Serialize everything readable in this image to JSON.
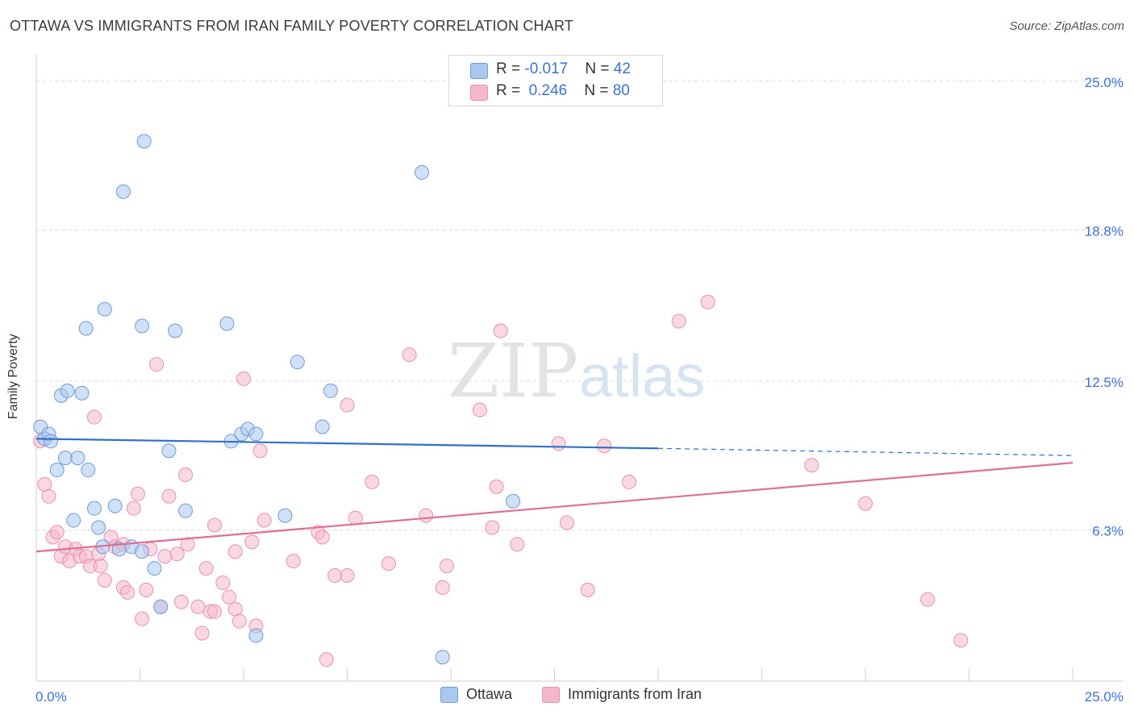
{
  "title": "OTTAWA VS IMMIGRANTS FROM IRAN FAMILY POVERTY CORRELATION CHART",
  "source": "Source: ZipAtlas.com",
  "watermark": {
    "part1": "ZIP",
    "part2": "atlas"
  },
  "legend": {
    "rows": [
      {
        "r_label": "R = ",
        "r_value": "-0.017",
        "n_label": "N = ",
        "n_value": "42"
      },
      {
        "r_label": "R = ",
        "r_value": "0.246",
        "n_label": "N = ",
        "n_value": "80"
      }
    ]
  },
  "colors": {
    "blue_fill": "#a9c7ef",
    "blue_stroke": "#6f9bd8",
    "blue_line": "#2e6fd0",
    "pink_fill": "#f5b8cb",
    "pink_stroke": "#e891ad",
    "pink_line": "#e06d98",
    "axis_label": "#3a72d8"
  },
  "chart_data": {
    "type": "scatter",
    "title": "OTTAWA VS IMMIGRANTS FROM IRAN FAMILY POVERTY CORRELATION CHART",
    "xlabel": "",
    "ylabel": "Family Poverty",
    "xlim": [
      0,
      25
    ],
    "ylim": [
      0,
      25.9
    ],
    "x_tick_labels": [
      "0.0%",
      "25.0%"
    ],
    "y_ticks": [
      6.3,
      12.5,
      18.8,
      25.0
    ],
    "y_tick_labels": [
      "6.3%",
      "12.5%",
      "18.8%",
      "25.0%"
    ],
    "grid": true,
    "series": [
      {
        "name": "Ottawa",
        "r": -0.017,
        "n": 42,
        "trend": {
          "x0": 0,
          "y0": 10.1,
          "x1": 15,
          "y1": 9.7,
          "dashed_to_x": 25,
          "dashed_to_y": 9.4
        },
        "points": [
          [
            0.1,
            10.6
          ],
          [
            0.2,
            10.1
          ],
          [
            0.3,
            10.3
          ],
          [
            0.35,
            10.0
          ],
          [
            0.5,
            8.8
          ],
          [
            0.6,
            11.9
          ],
          [
            0.7,
            9.3
          ],
          [
            0.75,
            12.1
          ],
          [
            0.9,
            6.7
          ],
          [
            1.0,
            9.3
          ],
          [
            1.1,
            12.0
          ],
          [
            1.2,
            14.7
          ],
          [
            1.25,
            8.8
          ],
          [
            1.4,
            7.2
          ],
          [
            1.5,
            6.4
          ],
          [
            1.6,
            5.6
          ],
          [
            1.65,
            15.5
          ],
          [
            1.9,
            7.3
          ],
          [
            2.0,
            5.5
          ],
          [
            2.1,
            20.4
          ],
          [
            2.3,
            5.6
          ],
          [
            2.55,
            14.8
          ],
          [
            2.55,
            5.4
          ],
          [
            2.6,
            22.5
          ],
          [
            2.85,
            4.7
          ],
          [
            3.0,
            3.1
          ],
          [
            3.2,
            9.6
          ],
          [
            3.35,
            14.6
          ],
          [
            3.6,
            7.1
          ],
          [
            4.6,
            14.9
          ],
          [
            4.7,
            10.0
          ],
          [
            4.95,
            10.3
          ],
          [
            5.1,
            10.5
          ],
          [
            5.3,
            10.3
          ],
          [
            5.3,
            1.9
          ],
          [
            6.0,
            6.9
          ],
          [
            6.3,
            13.3
          ],
          [
            6.9,
            10.6
          ],
          [
            7.1,
            12.1
          ],
          [
            9.3,
            21.2
          ],
          [
            9.8,
            1.0
          ],
          [
            11.5,
            7.5
          ]
        ]
      },
      {
        "name": "Immigrants from Iran",
        "r": 0.246,
        "n": 80,
        "trend": {
          "x0": 0,
          "y0": 5.4,
          "x1": 25,
          "y1": 9.1
        },
        "points": [
          [
            0.1,
            10.0
          ],
          [
            0.2,
            8.2
          ],
          [
            0.3,
            7.7
          ],
          [
            0.4,
            6.0
          ],
          [
            0.5,
            6.2
          ],
          [
            0.6,
            5.2
          ],
          [
            0.7,
            5.6
          ],
          [
            0.8,
            5.0
          ],
          [
            0.95,
            5.5
          ],
          [
            1.05,
            5.2
          ],
          [
            1.2,
            5.2
          ],
          [
            1.3,
            4.8
          ],
          [
            1.4,
            11.0
          ],
          [
            1.5,
            5.3
          ],
          [
            1.55,
            4.8
          ],
          [
            1.65,
            4.2
          ],
          [
            1.8,
            6.0
          ],
          [
            1.9,
            5.6
          ],
          [
            2.1,
            5.7
          ],
          [
            2.1,
            3.9
          ],
          [
            2.2,
            3.7
          ],
          [
            2.35,
            7.2
          ],
          [
            2.45,
            7.8
          ],
          [
            2.55,
            2.6
          ],
          [
            2.65,
            3.8
          ],
          [
            2.75,
            5.5
          ],
          [
            2.9,
            13.2
          ],
          [
            3.0,
            3.1
          ],
          [
            3.1,
            5.2
          ],
          [
            3.2,
            7.7
          ],
          [
            3.4,
            5.3
          ],
          [
            3.5,
            3.3
          ],
          [
            3.6,
            8.6
          ],
          [
            3.65,
            5.7
          ],
          [
            3.9,
            3.1
          ],
          [
            4.0,
            2.0
          ],
          [
            4.1,
            4.7
          ],
          [
            4.2,
            2.9
          ],
          [
            4.3,
            2.9
          ],
          [
            4.3,
            6.5
          ],
          [
            4.5,
            4.1
          ],
          [
            4.65,
            3.5
          ],
          [
            4.8,
            3.0
          ],
          [
            4.8,
            5.4
          ],
          [
            4.9,
            2.5
          ],
          [
            5.0,
            12.6
          ],
          [
            5.2,
            5.8
          ],
          [
            5.3,
            2.3
          ],
          [
            5.4,
            9.6
          ],
          [
            5.5,
            6.7
          ],
          [
            6.2,
            5.0
          ],
          [
            6.8,
            6.2
          ],
          [
            6.9,
            6.0
          ],
          [
            7.0,
            0.9
          ],
          [
            7.2,
            4.4
          ],
          [
            7.5,
            4.4
          ],
          [
            7.5,
            11.5
          ],
          [
            7.7,
            6.8
          ],
          [
            8.1,
            8.3
          ],
          [
            8.5,
            4.9
          ],
          [
            9.0,
            13.6
          ],
          [
            9.4,
            6.9
          ],
          [
            9.8,
            3.9
          ],
          [
            9.9,
            4.8
          ],
          [
            10.7,
            11.3
          ],
          [
            11.0,
            6.4
          ],
          [
            11.1,
            8.1
          ],
          [
            11.2,
            14.6
          ],
          [
            11.6,
            5.7
          ],
          [
            12.6,
            9.9
          ],
          [
            12.8,
            6.6
          ],
          [
            13.3,
            3.8
          ],
          [
            13.7,
            9.8
          ],
          [
            14.3,
            8.3
          ],
          [
            15.5,
            15.0
          ],
          [
            16.2,
            15.8
          ],
          [
            18.7,
            9.0
          ],
          [
            20.0,
            7.4
          ],
          [
            21.5,
            3.4
          ],
          [
            22.3,
            1.7
          ]
        ]
      }
    ]
  },
  "bottom_legend": {
    "items": [
      "Ottawa",
      "Immigrants from Iran"
    ]
  }
}
